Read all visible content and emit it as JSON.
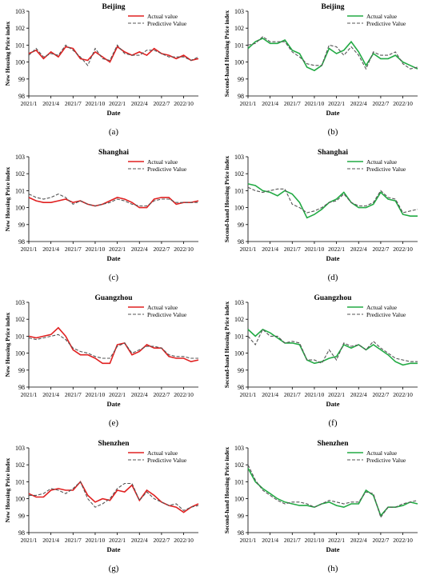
{
  "figure": {
    "panel_labels": [
      "(a)",
      "(b)",
      "(c)",
      "(d)",
      "(e)",
      "(f)",
      "(g)",
      "(h)"
    ]
  },
  "colors": {
    "actual_red": "#e02020",
    "actual_green": "#22aa44",
    "predictive": "#555555"
  },
  "chart_data": [
    {
      "type": "line",
      "title": "Beijing",
      "xlabel": "Date",
      "ylabel": "New Housing Price index",
      "ylim": [
        98,
        103
      ],
      "yticks": [
        "98",
        "99",
        "100",
        "101",
        "102",
        "103"
      ],
      "xtick_labels": [
        "2021/1",
        "2021/4",
        "2021/7",
        "2021/10",
        "2022/1",
        "2022/4",
        "2022/7",
        "2022/10"
      ],
      "legend_position": "top-right",
      "series": [
        {
          "name": "Actual value",
          "style": "solid",
          "color": "red",
          "values": [
            100.5,
            100.7,
            100.2,
            100.6,
            100.3,
            100.9,
            100.8,
            100.2,
            100.1,
            100.6,
            100.3,
            100.0,
            100.9,
            100.6,
            100.4,
            100.6,
            100.4,
            100.8,
            100.5,
            100.4,
            100.2,
            100.4,
            100.1,
            100.2
          ]
        },
        {
          "name": "Predictive Value",
          "style": "dashed",
          "values": [
            100.4,
            100.8,
            100.3,
            100.5,
            100.4,
            101.0,
            100.7,
            100.3,
            99.8,
            100.8,
            100.2,
            100.1,
            101.0,
            100.5,
            100.4,
            100.4,
            100.7,
            100.7,
            100.5,
            100.3,
            100.3,
            100.3,
            100.1,
            100.3
          ]
        }
      ]
    },
    {
      "type": "line",
      "title": "Beijing",
      "xlabel": "Date",
      "ylabel": "Second-hand Housing Price index",
      "ylim": [
        98,
        103
      ],
      "yticks": [
        "98",
        "99",
        "100",
        "101",
        "102",
        "103"
      ],
      "xtick_labels": [
        "2021/1",
        "2021/4",
        "2021/7",
        "2021/10",
        "2022/1",
        "2022/4",
        "2022/7",
        "2022/10"
      ],
      "legend_position": "top-right",
      "series": [
        {
          "name": "Actual value",
          "style": "solid",
          "color": "green",
          "values": [
            100.8,
            101.2,
            101.4,
            101.1,
            101.1,
            101.3,
            100.7,
            100.5,
            99.7,
            99.5,
            99.8,
            100.8,
            100.5,
            100.7,
            101.2,
            100.6,
            99.8,
            100.5,
            100.2,
            100.2,
            100.4,
            100.0,
            99.8,
            99.6
          ]
        },
        {
          "name": "Predictive Value",
          "style": "dashed",
          "values": [
            101.0,
            101.1,
            101.5,
            101.2,
            101.2,
            101.2,
            100.6,
            100.3,
            99.9,
            99.8,
            99.8,
            101.0,
            100.9,
            100.4,
            100.9,
            100.4,
            99.6,
            100.6,
            100.4,
            100.4,
            100.6,
            99.9,
            99.6,
            99.7
          ]
        }
      ]
    },
    {
      "type": "line",
      "title": "Shanghai",
      "xlabel": "Date",
      "ylabel": "New Housing Price index",
      "ylim": [
        98,
        103
      ],
      "yticks": [
        "98",
        "99",
        "100",
        "101",
        "102",
        "103"
      ],
      "xtick_labels": [
        "2021/1",
        "2021/4",
        "2021/7",
        "2021/10",
        "2022/1",
        "2022/4",
        "2022/7",
        "2022/10"
      ],
      "legend_position": "top-right",
      "series": [
        {
          "name": "Actual value",
          "style": "solid",
          "color": "red",
          "values": [
            100.6,
            100.4,
            100.3,
            100.3,
            100.4,
            100.5,
            100.3,
            100.4,
            100.2,
            100.1,
            100.2,
            100.4,
            100.6,
            100.5,
            100.3,
            100.0,
            100.0,
            100.5,
            100.6,
            100.6,
            100.2,
            100.3,
            100.3,
            100.4
          ]
        },
        {
          "name": "Predictive Value",
          "style": "dashed",
          "values": [
            100.8,
            100.6,
            100.5,
            100.6,
            100.8,
            100.6,
            100.2,
            100.4,
            100.2,
            100.1,
            100.2,
            100.3,
            100.5,
            100.4,
            100.2,
            100.1,
            100.1,
            100.4,
            100.5,
            100.5,
            100.3,
            100.3,
            100.3,
            100.3
          ]
        }
      ]
    },
    {
      "type": "line",
      "title": "Shanghai",
      "xlabel": "Date",
      "ylabel": "Second-hand Housing Price index",
      "ylim": [
        98,
        103
      ],
      "yticks": [
        "98",
        "99",
        "100",
        "101",
        "102",
        "103"
      ],
      "xtick_labels": [
        "2021/1",
        "2021/4",
        "2021/7",
        "2021/10",
        "2022/1",
        "2022/4",
        "2022/7",
        "2022/10"
      ],
      "legend_position": "top-right",
      "series": [
        {
          "name": "Actual value",
          "style": "solid",
          "color": "green",
          "values": [
            101.4,
            101.3,
            101.0,
            100.9,
            100.7,
            101.0,
            100.8,
            100.3,
            99.4,
            99.6,
            99.9,
            100.3,
            100.5,
            100.9,
            100.3,
            100.0,
            100.0,
            100.2,
            100.9,
            100.5,
            100.4,
            99.6,
            99.5,
            99.5
          ]
        },
        {
          "name": "Predictive Value",
          "style": "dashed",
          "values": [
            101.2,
            101.0,
            100.9,
            101.0,
            101.1,
            101.1,
            100.2,
            100.0,
            99.7,
            99.8,
            100.0,
            100.3,
            100.4,
            100.8,
            100.3,
            100.1,
            100.1,
            100.3,
            101.0,
            100.6,
            100.5,
            99.7,
            99.8,
            99.9
          ]
        }
      ]
    },
    {
      "type": "line",
      "title": "Guangzhou",
      "xlabel": "Date",
      "ylabel": "New Housing Price index",
      "ylim": [
        98,
        103
      ],
      "yticks": [
        "98",
        "99",
        "100",
        "101",
        "102",
        "103"
      ],
      "xtick_labels": [
        "2021/1",
        "2021/4",
        "2021/7",
        "2021/10",
        "2022/1",
        "2022/4",
        "2022/7",
        "2022/10"
      ],
      "legend_position": "top-right",
      "series": [
        {
          "name": "Actual value",
          "style": "solid",
          "color": "red",
          "values": [
            101.0,
            100.9,
            101.0,
            101.1,
            101.5,
            101.0,
            100.2,
            99.9,
            99.9,
            99.7,
            99.4,
            99.4,
            100.5,
            100.6,
            99.9,
            100.1,
            100.5,
            100.3,
            100.3,
            99.8,
            99.7,
            99.7,
            99.5,
            99.6
          ]
        },
        {
          "name": "Predictive Value",
          "style": "dashed",
          "values": [
            100.9,
            100.8,
            100.9,
            101.0,
            101.1,
            100.8,
            100.3,
            100.1,
            100.0,
            99.8,
            99.7,
            99.7,
            100.4,
            100.6,
            100.0,
            100.2,
            100.4,
            100.4,
            100.3,
            99.9,
            99.8,
            99.8,
            99.7,
            99.7
          ]
        }
      ]
    },
    {
      "type": "line",
      "title": "Guangzhou",
      "xlabel": "Date",
      "ylabel": "Second-hand Housing Price index",
      "ylim": [
        98,
        103
      ],
      "yticks": [
        "98",
        "99",
        "100",
        "101",
        "102",
        "103"
      ],
      "xtick_labels": [
        "2021/1",
        "2021/4",
        "2021/7",
        "2021/10",
        "2022/1",
        "2022/4",
        "2022/7",
        "2022/10"
      ],
      "legend_position": "top-right",
      "series": [
        {
          "name": "Actual value",
          "style": "solid",
          "color": "green",
          "values": [
            101.4,
            101.0,
            101.4,
            101.2,
            100.9,
            100.6,
            100.6,
            100.5,
            99.6,
            99.4,
            99.5,
            99.7,
            99.8,
            100.5,
            100.3,
            100.5,
            100.2,
            100.5,
            100.2,
            99.9,
            99.5,
            99.3,
            99.4,
            99.4
          ]
        },
        {
          "name": "Predictive Value",
          "style": "dashed",
          "values": [
            101.0,
            100.5,
            101.4,
            101.0,
            101.0,
            100.6,
            100.7,
            100.6,
            99.6,
            99.6,
            99.4,
            100.2,
            99.6,
            100.6,
            100.4,
            100.5,
            100.2,
            100.7,
            100.3,
            100.0,
            99.7,
            99.6,
            99.5,
            99.5
          ]
        }
      ]
    },
    {
      "type": "line",
      "title": "Shenzhen",
      "xlabel": "Date",
      "ylabel": "New Housing Price index",
      "ylim": [
        98,
        103
      ],
      "yticks": [
        "98",
        "99",
        "100",
        "101",
        "102",
        "103"
      ],
      "xtick_labels": [
        "2021/1",
        "2021/4",
        "2021/7",
        "2021/10",
        "2022/1",
        "2022/4",
        "2022/7",
        "2022/10"
      ],
      "legend_position": "top-right",
      "series": [
        {
          "name": "Actual value",
          "style": "solid",
          "color": "red",
          "values": [
            100.3,
            100.1,
            100.1,
            100.5,
            100.6,
            100.5,
            100.5,
            101.0,
            100.2,
            99.8,
            100.0,
            99.9,
            100.5,
            100.4,
            100.8,
            99.9,
            100.5,
            100.2,
            99.8,
            99.6,
            99.5,
            99.2,
            99.5,
            99.7
          ]
        },
        {
          "name": "Predictive Value",
          "style": "dashed",
          "values": [
            100.2,
            100.2,
            100.3,
            100.6,
            100.5,
            100.3,
            100.6,
            101.0,
            100.0,
            99.5,
            99.7,
            100.0,
            100.6,
            100.9,
            100.9,
            99.9,
            100.4,
            100.0,
            99.8,
            99.6,
            99.7,
            99.3,
            99.5,
            99.6
          ]
        }
      ]
    },
    {
      "type": "line",
      "title": "Shenzhen",
      "xlabel": "Date",
      "ylabel": "Second-hand Housing Price index",
      "ylim": [
        98,
        103
      ],
      "yticks": [
        "98",
        "99",
        "100",
        "101",
        "102",
        "103"
      ],
      "xtick_labels": [
        "2021/1",
        "2021/4",
        "2021/7",
        "2021/10",
        "2022/1",
        "2022/4",
        "2022/7",
        "2022/10"
      ],
      "legend_position": "top-right",
      "series": [
        {
          "name": "Actual value",
          "style": "solid",
          "color": "green",
          "values": [
            101.8,
            101.0,
            100.6,
            100.3,
            100.0,
            99.8,
            99.7,
            99.6,
            99.6,
            99.5,
            99.7,
            99.8,
            99.6,
            99.5,
            99.7,
            99.7,
            100.5,
            100.2,
            99.0,
            99.5,
            99.5,
            99.6,
            99.8,
            99.7
          ]
        },
        {
          "name": "Predictive Value",
          "style": "dashed",
          "values": [
            102.0,
            101.1,
            100.5,
            100.2,
            99.9,
            99.7,
            99.8,
            99.8,
            99.7,
            99.5,
            99.7,
            99.9,
            99.8,
            99.7,
            99.8,
            99.8,
            100.4,
            100.3,
            98.9,
            99.5,
            99.5,
            99.7,
            99.8,
            99.9
          ]
        }
      ]
    }
  ]
}
